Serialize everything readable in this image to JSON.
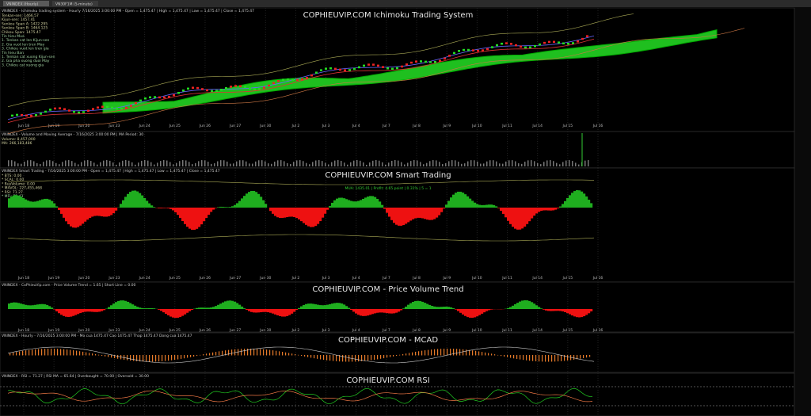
{
  "tabs": [
    "VNINDEX (Hourly)",
    "VN30F1M (5-minute)"
  ],
  "dates": [
    "Jun 18",
    "Jun 19",
    "Jun 20",
    "Jun 23",
    "Jun 24",
    "Jun 25",
    "Jun 26",
    "Jun 27",
    "Jun 30",
    "Jul 2",
    "Jul 3",
    "Jul 4",
    "Jul 7",
    "Jul 8",
    "Jul 9",
    "Jul 10",
    "Jul 11",
    "Jul 14",
    "Jul 15",
    "Jul 16"
  ],
  "panels": [
    {
      "title": "COPHIEUVIP.COM Ichimoku Trading System",
      "header": "VNINDEX - Ichimoku trading system - Hourly 7/16/2025 3:00:00 PM - Open = 1,475.47 | High = 1,475.47 | Low = 1,475.47 | Close = 1,475.47",
      "notes": [
        "Tenkan-sen: 1466.57",
        "Kijun-sen: 1457.41",
        "Senkou Span A: 1422.295",
        "Senkou Span B: 1464.125",
        "Chikou Span: 1475.47",
        "Tin hieu Mua",
        "1. Tenkan cat len Kijun-sen",
        "2. Gia vuot len tren May",
        "3. Chikou vuot len tren gia",
        "Tin hieu Ban",
        "1. Tenkan cat xuong Kijun-sen",
        "2. Gia pha xuong duoi May",
        "3. Chikou cat xuong gia"
      ]
    },
    {
      "title": "",
      "header": "VNINDEX - Volume and Moving Average - 7/16/2025 3:00:00 PM | MA Period: 30",
      "notes": [
        "Volume: 8,457,000",
        "MA: 266,183,486"
      ]
    },
    {
      "title": "COPHIEUVIP.COM Smart Trading",
      "header": "VNINDEX Smart Trading - 7/16/2025 3:00:00 PM - Open = 1,475.47 | High = 1,475.47 | Low = 1,475.47 | Close = 1,475.47",
      "signal": "MUA: 1435.01 | Profit: 4.65 point | 0.31% | 5 = 1",
      "notes": [
        "* BTS: 0.00",
        "* SCAL: 0.00",
        "* BuyVolume: 0.00",
        "* MAVOL: 227,455,468",
        "* RSI: 71.27",
        "* MFI: 75.43"
      ]
    },
    {
      "title": "COPHIEUVIP.COM - Price Volume Trend",
      "header": "VNINDEX - CoPhieuVip.com - Price Volume Trend = 1.65 | Short Line = 0.00"
    },
    {
      "title": "COPHIEUVIP.COM - MCAD",
      "header": "VNINDEX - Hourly - 7/16/2025 3:00:00 PM - Mo cua 1475.47 Cao 1475.47 Thap 1475.47 Dong cua 1475.47"
    },
    {
      "title": "COPHIEUVIP.COM RSI",
      "header": "VNINDEX - RSI = 71.27 | RSI MA = 65.64 | Overbought = 70.00 | Oversold = 30.00"
    }
  ]
}
